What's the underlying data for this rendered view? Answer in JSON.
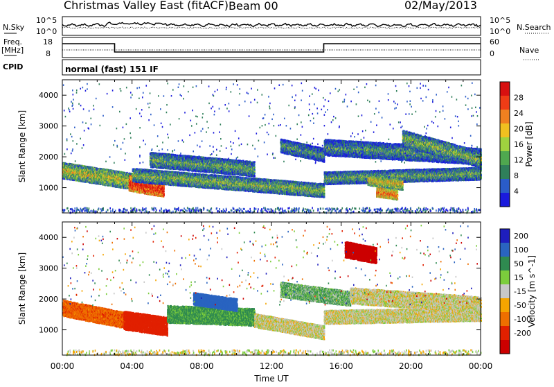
{
  "header": {
    "title": "Christmas Valley East (fitACF)",
    "beam": "Beam 00",
    "date": "02/May/2013"
  },
  "noise_panel": {
    "left_label": "N.Sky",
    "right_label": "N.Search",
    "ticks_left": [
      "10^5",
      "10^0"
    ],
    "ticks_right": [
      "10^5",
      "10^0"
    ]
  },
  "freq_panel": {
    "left_label_1": "Freq.",
    "left_label_2": "[MHz]",
    "right_label": "Nave",
    "ticks_left": [
      "18",
      "8"
    ],
    "ticks_right": [
      "60",
      "0"
    ]
  },
  "cpid": {
    "label": "CPID",
    "value": "normal (fast) 151 IF"
  },
  "colors": {
    "power_scale": [
      "#1a1adc",
      "#2a5cc8",
      "#2f7f5a",
      "#4fa84f",
      "#9fd23f",
      "#f0c020",
      "#f08020",
      "#ef3c16",
      "#d81010"
    ],
    "velocity_scale": [
      "#1e1ebe",
      "#2a64c0",
      "#2f8a50",
      "#7ccd3c",
      "#c8c8c8",
      "#f5a500",
      "#ee6f00",
      "#e12000",
      "#cc0000"
    ]
  },
  "chart_data": [
    {
      "type": "heatmap",
      "title": "Power",
      "xlabel": "",
      "ylabel": "Slant Range [km]",
      "ylim": [
        180,
        4500
      ],
      "xlim": [
        0,
        24
      ],
      "y_ticks": [
        "1000",
        "2000",
        "3000",
        "4000"
      ],
      "colorbar": {
        "label": "Power [dB]",
        "ticks": [
          "4",
          "8",
          "12",
          "16",
          "20",
          "24",
          "28"
        ],
        "range": [
          0,
          32
        ]
      },
      "echo_bands": [
        {
          "t0": 0,
          "t1": 4.5,
          "r0": 1550,
          "r1": 1150,
          "width": 260,
          "level": 0.55
        },
        {
          "t0": 3.8,
          "t1": 5.8,
          "r0": 1150,
          "r1": 950,
          "width": 260,
          "level": 0.95
        },
        {
          "t0": 4.0,
          "t1": 15.0,
          "r0": 1400,
          "r1": 900,
          "width": 220,
          "level": 0.45
        },
        {
          "t0": 5.0,
          "t1": 11.0,
          "r0": 1900,
          "r1": 1600,
          "width": 240,
          "level": 0.4
        },
        {
          "t0": 12.5,
          "t1": 15.0,
          "r0": 2350,
          "r1": 2050,
          "width": 220,
          "level": 0.35
        },
        {
          "t0": 15.0,
          "t1": 24,
          "r0": 1300,
          "r1": 1450,
          "width": 200,
          "level": 0.4
        },
        {
          "t0": 17.5,
          "t1": 19.5,
          "r0": 1250,
          "r1": 1100,
          "width": 180,
          "level": 0.6
        },
        {
          "t0": 18.0,
          "t1": 19.2,
          "r0": 850,
          "r1": 750,
          "width": 150,
          "level": 0.8
        },
        {
          "t0": 15.0,
          "t1": 24,
          "r0": 2300,
          "r1": 2000,
          "width": 260,
          "level": 0.35
        },
        {
          "t0": 19.5,
          "t1": 24,
          "r0": 2600,
          "r1": 1900,
          "width": 260,
          "level": 0.45
        }
      ]
    },
    {
      "type": "heatmap",
      "title": "Velocity",
      "xlabel": "Time UT",
      "ylabel": "Slant Range [km]",
      "ylim": [
        180,
        4500
      ],
      "xlim": [
        0,
        24
      ],
      "x_ticks": [
        "00:00",
        "04:00",
        "08:00",
        "12:00",
        "16:00",
        "20:00",
        "00:00"
      ],
      "y_ticks": [
        "1000",
        "2000",
        "3000",
        "4000"
      ],
      "colorbar": {
        "label": "Velocity [m s^-1]",
        "ticks": [
          "200",
          "100",
          "50",
          "15",
          "-15",
          "-50",
          "-100",
          "-200"
        ],
        "range": [
          -250,
          250
        ]
      },
      "echo_bands": [
        {
          "t0": 0,
          "t1": 4.0,
          "r0": 1700,
          "r1": 1250,
          "width": 260,
          "vel": -60
        },
        {
          "t0": 3.5,
          "t1": 6.0,
          "r0": 1300,
          "r1": 1100,
          "width": 300,
          "vel": -120
        },
        {
          "t0": 6.0,
          "t1": 11.0,
          "r0": 1500,
          "r1": 1400,
          "width": 280,
          "vel": 45
        },
        {
          "t0": 7.5,
          "t1": 10.0,
          "r0": 2000,
          "r1": 1800,
          "width": 200,
          "vel": 120
        },
        {
          "t0": 11.0,
          "t1": 15.0,
          "r0": 1300,
          "r1": 900,
          "width": 220,
          "vel": 0
        },
        {
          "t0": 12.5,
          "t1": 16.5,
          "r0": 2300,
          "r1": 2000,
          "width": 240,
          "vel": 30
        },
        {
          "t0": 15.0,
          "t1": 24,
          "r0": 1400,
          "r1": 1500,
          "width": 220,
          "vel": 0
        },
        {
          "t0": 16.5,
          "t1": 24,
          "r0": 2100,
          "r1": 1800,
          "width": 260,
          "vel": 0
        },
        {
          "t0": 16.2,
          "t1": 18.0,
          "r0": 3600,
          "r1": 3400,
          "width": 260,
          "vel": -200
        }
      ]
    }
  ]
}
